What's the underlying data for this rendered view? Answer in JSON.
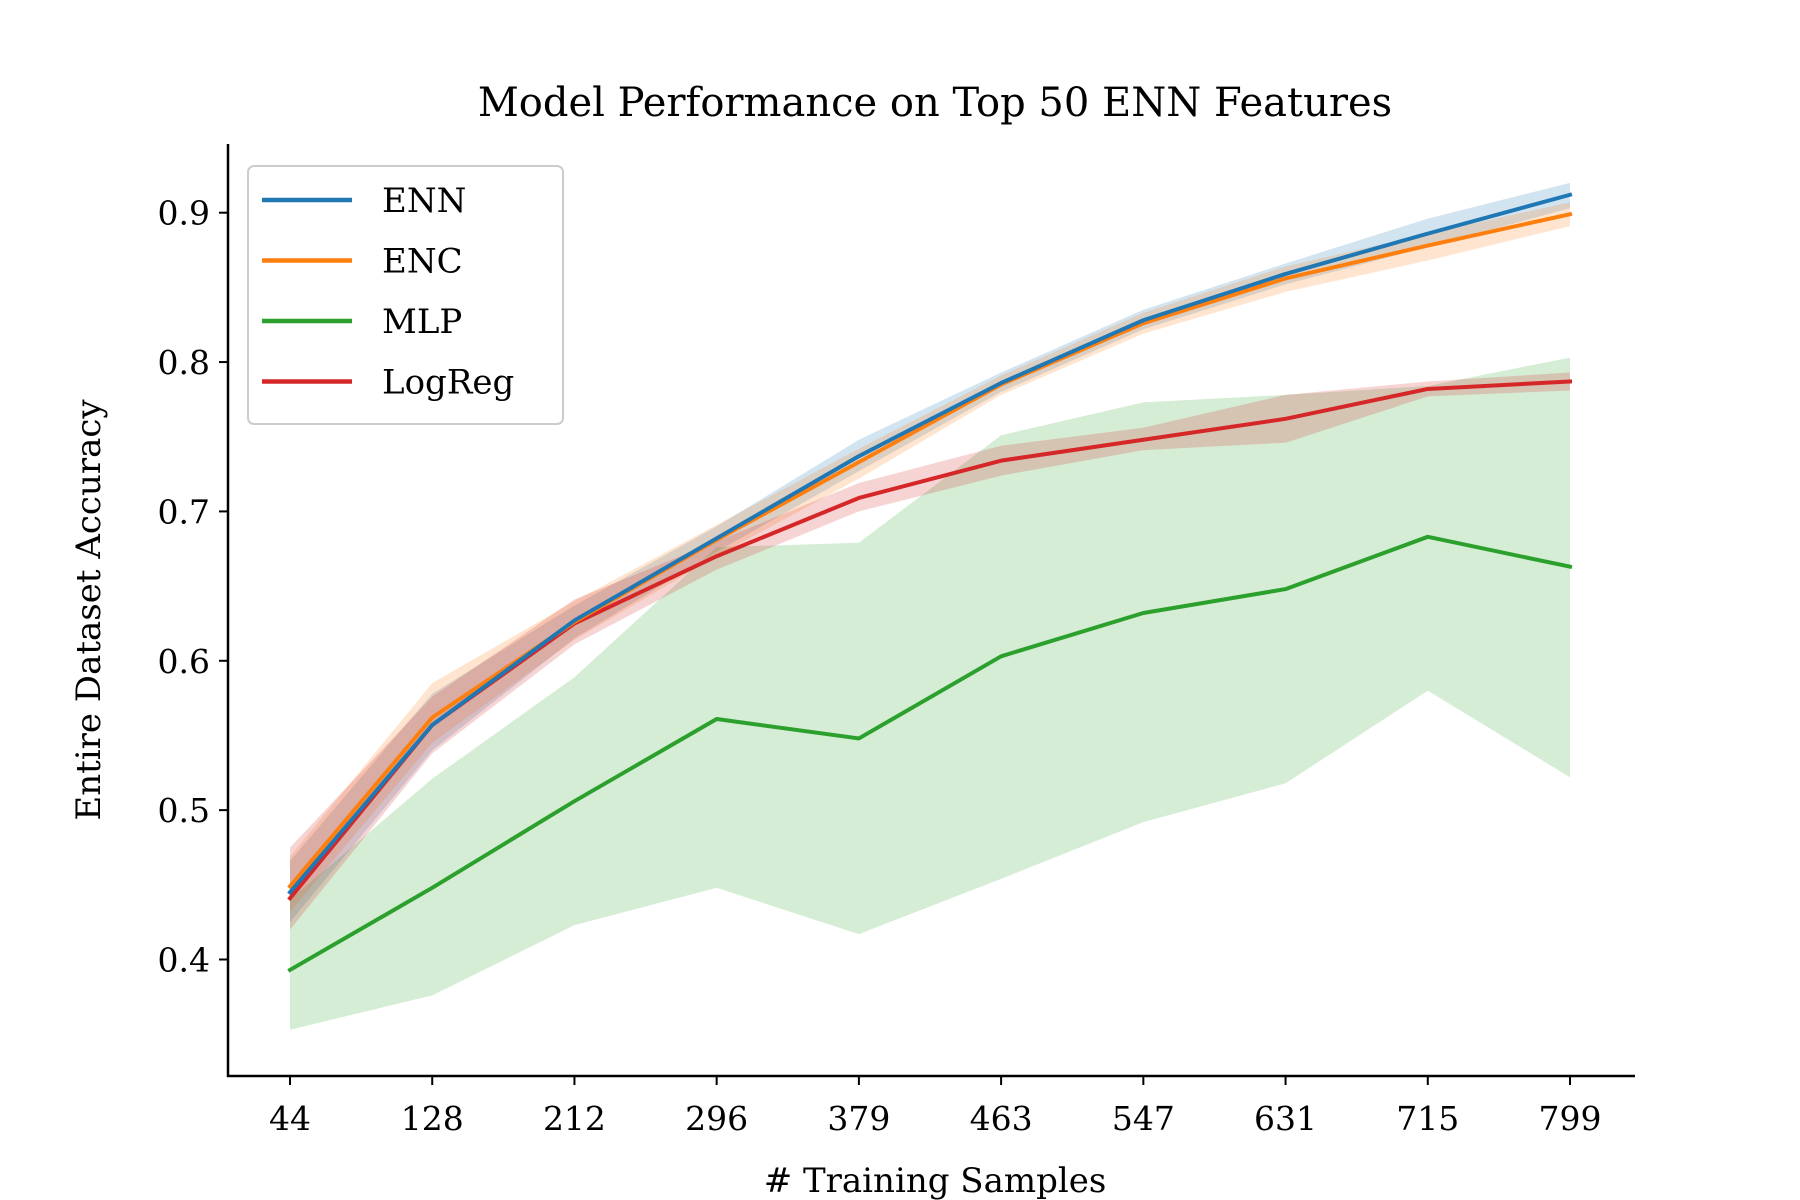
{
  "chart_data": {
    "type": "line",
    "title": "Model Performance on Top 50 ENN Features",
    "xlabel": "# Training Samples",
    "ylabel": "Entire Dataset Accuracy",
    "categories": [
      "44",
      "128",
      "212",
      "296",
      "379",
      "463",
      "547",
      "631",
      "715",
      "799"
    ],
    "ylim": [
      0.322,
      0.946
    ],
    "yticks": [
      "0.4",
      "0.5",
      "0.6",
      "0.7",
      "0.8",
      "0.9"
    ],
    "grid": false,
    "legend_position": "top-left",
    "series": [
      {
        "name": "ENN",
        "color": "#1f77b4",
        "values": [
          0.445,
          0.557,
          0.627,
          0.682,
          0.737,
          0.786,
          0.828,
          0.859,
          0.886,
          0.912
        ],
        "lower": [
          0.425,
          0.54,
          0.615,
          0.673,
          0.727,
          0.78,
          0.822,
          0.852,
          0.877,
          0.903
        ],
        "upper": [
          0.466,
          0.578,
          0.637,
          0.69,
          0.748,
          0.793,
          0.835,
          0.866,
          0.896,
          0.92
        ]
      },
      {
        "name": "ENC",
        "color": "#ff7f0e",
        "values": [
          0.449,
          0.562,
          0.626,
          0.681,
          0.733,
          0.785,
          0.826,
          0.856,
          0.878,
          0.899
        ],
        "lower": [
          0.432,
          0.545,
          0.614,
          0.67,
          0.722,
          0.778,
          0.819,
          0.847,
          0.868,
          0.891
        ],
        "upper": [
          0.469,
          0.585,
          0.64,
          0.691,
          0.742,
          0.791,
          0.833,
          0.864,
          0.886,
          0.907
        ]
      },
      {
        "name": "MLP",
        "color": "#2ca02c",
        "values": [
          0.393,
          0.448,
          0.506,
          0.561,
          0.548,
          0.603,
          0.632,
          0.648,
          0.683,
          0.663
        ],
        "lower": [
          0.353,
          0.376,
          0.423,
          0.448,
          0.417,
          0.454,
          0.492,
          0.518,
          0.58,
          0.522
        ],
        "upper": [
          0.44,
          0.521,
          0.589,
          0.676,
          0.679,
          0.751,
          0.773,
          0.778,
          0.784,
          0.803
        ]
      },
      {
        "name": "LogReg",
        "color": "#d62728",
        "values": [
          0.441,
          0.557,
          0.625,
          0.67,
          0.709,
          0.734,
          0.748,
          0.762,
          0.782,
          0.787
        ],
        "lower": [
          0.42,
          0.538,
          0.611,
          0.661,
          0.7,
          0.724,
          0.741,
          0.746,
          0.777,
          0.781
        ],
        "upper": [
          0.475,
          0.576,
          0.641,
          0.68,
          0.719,
          0.744,
          0.756,
          0.778,
          0.787,
          0.793
        ]
      }
    ]
  }
}
